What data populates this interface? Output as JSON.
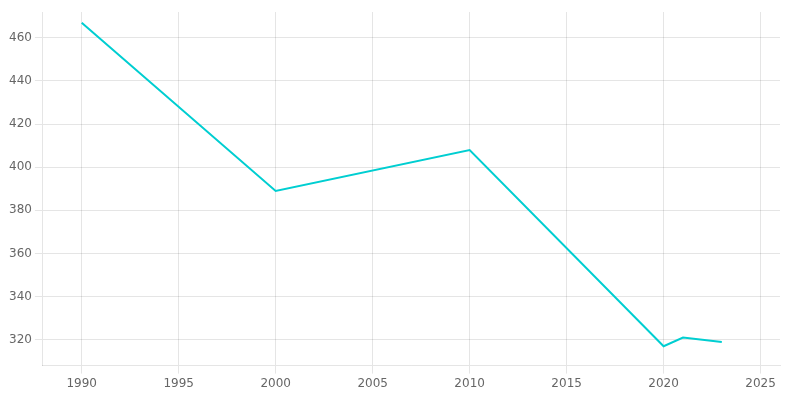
{
  "chart_data": {
    "type": "line",
    "x": [
      1990,
      2000,
      2010,
      2020,
      2021,
      2023
    ],
    "values": [
      467,
      389,
      408,
      317,
      321,
      319
    ],
    "color": "#00CED1",
    "xlim": [
      1988,
      2026
    ],
    "ylim": [
      308,
      472
    ],
    "xticks": [
      1990,
      1995,
      2000,
      2005,
      2010,
      2015,
      2020,
      2025
    ],
    "yticks": [
      320,
      340,
      360,
      380,
      400,
      420,
      440,
      460
    ],
    "grid": true
  }
}
